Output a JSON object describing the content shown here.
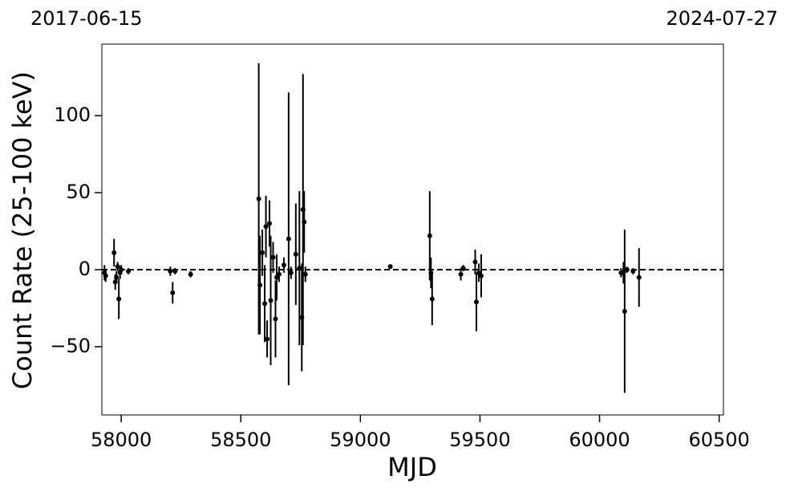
{
  "chart_data": {
    "type": "scatter",
    "annotations": [
      "2017-06-15",
      "2024-07-27"
    ],
    "xlabel": "MJD",
    "ylabel": "Count Rate (25-100 keV)",
    "xlim": [
      57919,
      60518
    ],
    "ylim": [
      -94.3,
      146.4
    ],
    "xticks": [
      58000,
      58500,
      59000,
      59500,
      60000,
      60500
    ],
    "yticks": [
      {
        "value": -50,
        "label": "−50"
      },
      0,
      50,
      100
    ],
    "reference_line": 0,
    "color": "#000000",
    "x": [
      57930,
      57935,
      57970,
      57975,
      57980,
      57985,
      57990,
      57995,
      58000,
      58030,
      58205,
      58215,
      58225,
      58290,
      58575,
      58580,
      58590,
      58600,
      58605,
      58610,
      58620,
      58625,
      58635,
      58645,
      58650,
      58660,
      58680,
      58700,
      58710,
      58730,
      58745,
      58755,
      58760,
      58765,
      58770,
      59125,
      59290,
      59295,
      59300,
      59420,
      59430,
      59480,
      59485,
      59495,
      59505,
      60090,
      60100,
      60105,
      60115,
      60140,
      60165
    ],
    "values": [
      -2,
      -4,
      11,
      -8,
      -5,
      2,
      -19,
      -2,
      0,
      -1,
      -1,
      -15,
      -1,
      -3,
      46,
      -10,
      11,
      -22,
      28,
      -45,
      30,
      -20,
      8,
      -32,
      -5,
      -3,
      3,
      20,
      -2,
      10,
      1,
      -31,
      39,
      31,
      -3,
      2,
      22,
      -2,
      -19,
      -3,
      1,
      5,
      -21,
      -2,
      -4,
      -2,
      -2,
      -27,
      0,
      -1,
      -5
    ],
    "errors": [
      5,
      4,
      9,
      5,
      4,
      3,
      13,
      4,
      3,
      2,
      3,
      7,
      2,
      2,
      88,
      32,
      15,
      25,
      20,
      12,
      15,
      42,
      10,
      25,
      15,
      5,
      5,
      95,
      4,
      33,
      50,
      35,
      88,
      20,
      5,
      1,
      29,
      10,
      17,
      4,
      2,
      8,
      19,
      6,
      14,
      3,
      7,
      53,
      2,
      2,
      19
    ]
  }
}
